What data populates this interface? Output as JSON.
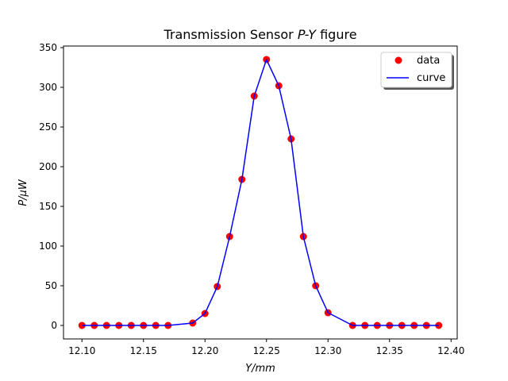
{
  "chart_data": {
    "type": "line",
    "title": "Transmission Sensor P-Y figure",
    "title_parts": {
      "prefix": "Transmission Sensor ",
      "italic": "P-Y",
      "suffix": " figure"
    },
    "xlabel": "Y/mm",
    "ylabel": "P/μW",
    "xlim": [
      12.085,
      12.405
    ],
    "ylim": [
      -17,
      352
    ],
    "xticks": [
      12.1,
      12.15,
      12.2,
      12.25,
      12.3,
      12.35,
      12.4
    ],
    "xtick_labels": [
      "12.10",
      "12.15",
      "12.20",
      "12.25",
      "12.30",
      "12.35",
      "12.40"
    ],
    "yticks": [
      0,
      50,
      100,
      150,
      200,
      250,
      300,
      350
    ],
    "ytick_labels": [
      "0",
      "50",
      "100",
      "150",
      "200",
      "250",
      "300",
      "350"
    ],
    "grid": false,
    "legend_position": "top-right",
    "series": [
      {
        "name": "data",
        "kind": "scatter",
        "color": "#ff0000",
        "x": [
          12.1,
          12.11,
          12.12,
          12.13,
          12.14,
          12.15,
          12.16,
          12.17,
          12.19,
          12.2,
          12.21,
          12.22,
          12.23,
          12.24,
          12.25,
          12.26,
          12.27,
          12.28,
          12.29,
          12.3,
          12.32,
          12.33,
          12.34,
          12.35,
          12.36,
          12.37,
          12.38,
          12.39
        ],
        "values": [
          0,
          0,
          0,
          0,
          0,
          0,
          0,
          0,
          3,
          15,
          49,
          112,
          184,
          289,
          335,
          302,
          235,
          112,
          50,
          16,
          0,
          0,
          0,
          0,
          0,
          0,
          0,
          0
        ]
      },
      {
        "name": "curve",
        "kind": "line",
        "color": "#0000ff",
        "x": [
          12.1,
          12.11,
          12.12,
          12.13,
          12.14,
          12.15,
          12.16,
          12.17,
          12.19,
          12.2,
          12.21,
          12.22,
          12.23,
          12.24,
          12.25,
          12.26,
          12.27,
          12.28,
          12.29,
          12.3,
          12.32,
          12.33,
          12.34,
          12.35,
          12.36,
          12.37,
          12.38,
          12.39
        ],
        "values": [
          0,
          0,
          0,
          0,
          0,
          0,
          0,
          0,
          3,
          15,
          49,
          112,
          184,
          289,
          335,
          302,
          235,
          112,
          50,
          16,
          0,
          0,
          0,
          0,
          0,
          0,
          0,
          0
        ]
      }
    ]
  }
}
